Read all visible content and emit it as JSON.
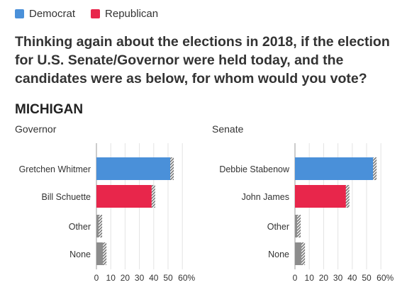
{
  "legend": {
    "items": [
      {
        "label": "Democrat",
        "color": "#4a90d9"
      },
      {
        "label": "Republican",
        "color": "#e8264b"
      }
    ]
  },
  "question": "Thinking again about the elections in 2018, if the election for U.S. Senate/Governor were held today, and the candidates were as below, for whom would you vote?",
  "state": "MICHIGAN",
  "colors": {
    "Democrat": "#4a90d9",
    "Republican": "#e8264b",
    "Other": "#8c8c8c",
    "uncertainty": "#777777"
  },
  "chart_data": [
    {
      "type": "bar",
      "orientation": "horizontal",
      "subtitle": "Governor",
      "categories": [
        "Gretchen Whitmer",
        "Bill Schuette",
        "Other",
        "None"
      ],
      "values": [
        53,
        40,
        3,
        6
      ],
      "parties": [
        "Democrat",
        "Republican",
        "Other",
        "Other"
      ],
      "xlim": [
        0,
        60
      ],
      "xticks": [
        "0",
        "10",
        "20",
        "30",
        "40",
        "50",
        "60%"
      ],
      "grid": true
    },
    {
      "type": "bar",
      "orientation": "horizontal",
      "subtitle": "Senate",
      "categories": [
        "Debbie Stabenow",
        "John James",
        "Other",
        "None"
      ],
      "values": [
        56,
        37,
        3,
        6
      ],
      "parties": [
        "Democrat",
        "Republican",
        "Other",
        "Other"
      ],
      "xlim": [
        0,
        60
      ],
      "xticks": [
        "0",
        "10",
        "20",
        "30",
        "40",
        "50",
        "60%"
      ],
      "grid": true
    }
  ]
}
